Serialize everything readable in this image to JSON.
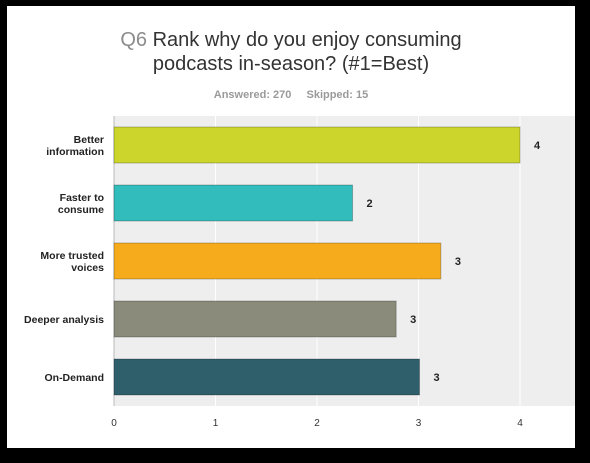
{
  "title": {
    "question_number": "Q6",
    "text_line1": "Rank why do you enjoy consuming",
    "text_line2": "podcasts in-season? (#1=Best)"
  },
  "stats": {
    "answered": "Answered: 270",
    "skipped": "Skipped: 15"
  },
  "chart_data": {
    "type": "bar",
    "orientation": "horizontal",
    "categories": [
      [
        "Better",
        "information"
      ],
      [
        "Faster to",
        "consume"
      ],
      [
        "More trusted",
        "voices"
      ],
      [
        "Deeper analysis"
      ],
      [
        "On-Demand"
      ]
    ],
    "values": [
      4.0,
      2.35,
      3.22,
      2.78,
      3.01
    ],
    "data_labels": [
      "4",
      "2",
      "3",
      "3",
      "3"
    ],
    "colors": [
      "#cbd52b",
      "#33bcbc",
      "#f5ab1c",
      "#8b8b7b",
      "#2e5f6b"
    ],
    "xlim": [
      0,
      5
    ],
    "xticks": [
      "0",
      "1",
      "2",
      "3",
      "4"
    ],
    "grid": true,
    "background": "#eeeeee"
  }
}
